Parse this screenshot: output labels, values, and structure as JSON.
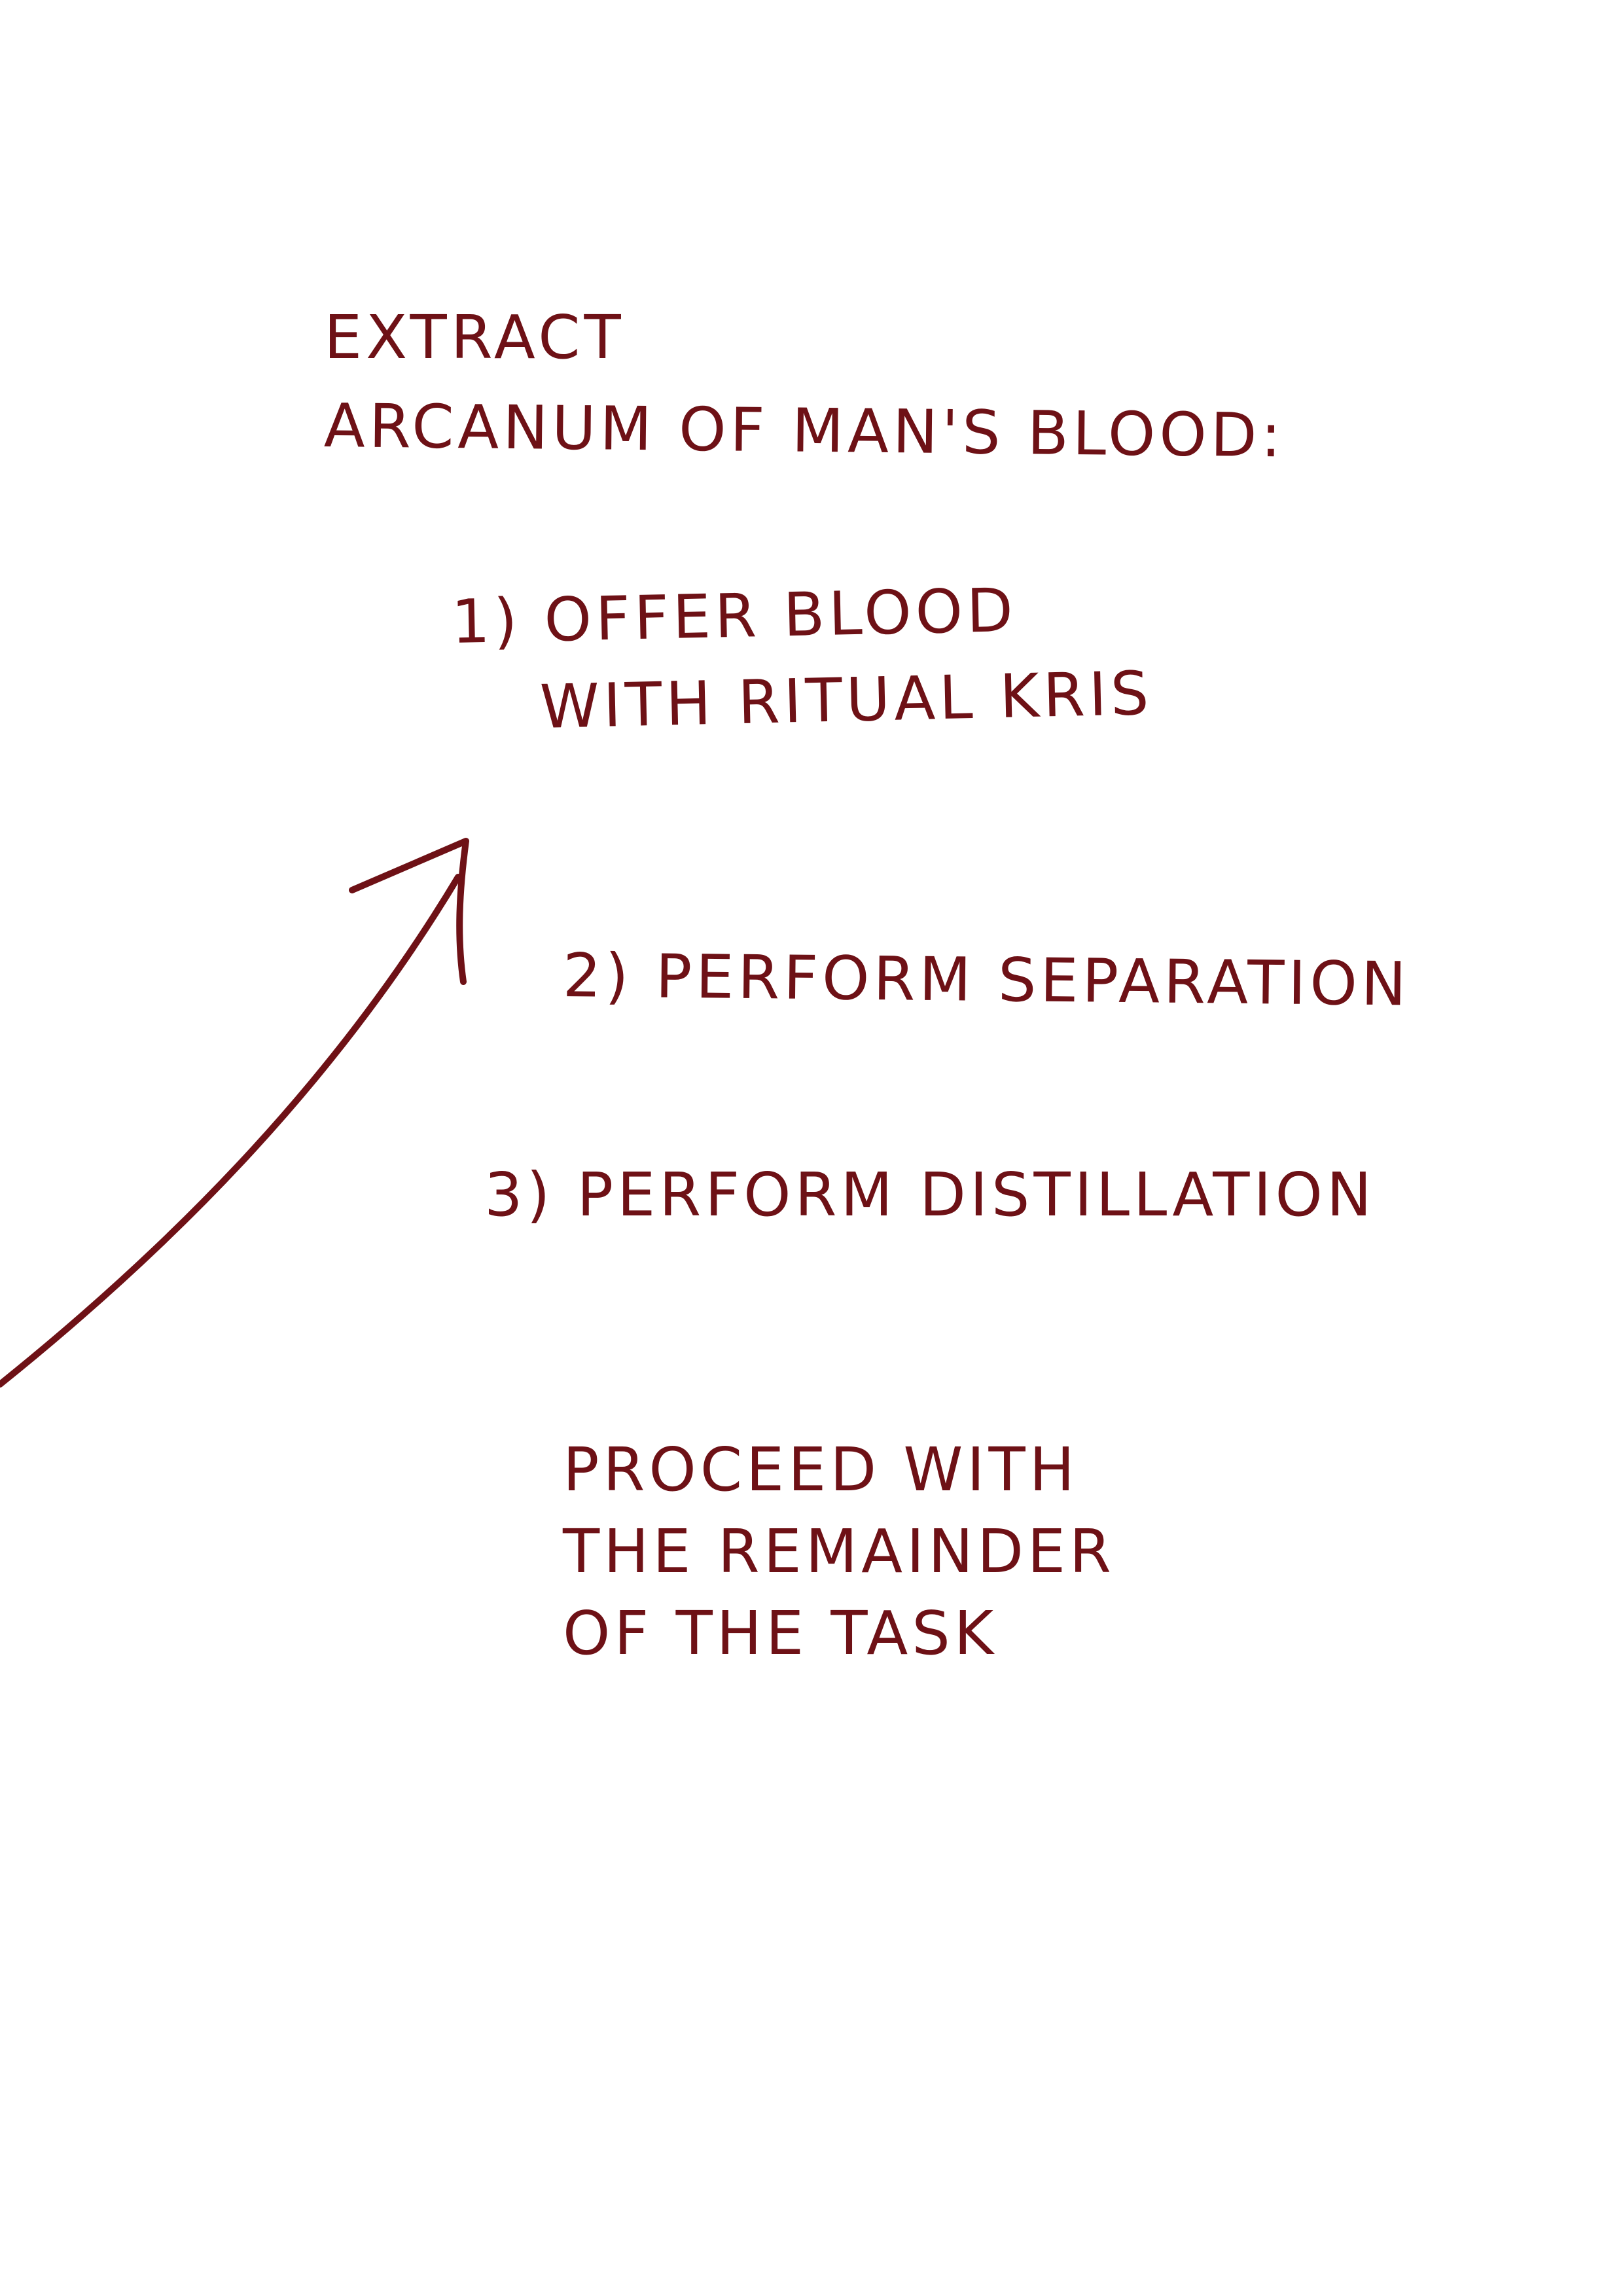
{
  "note": {
    "heading_line1": "EXTRACT",
    "heading_line2": "ARCANUM OF MAN'S BLOOD:",
    "step1_line1": "1) OFFER BLOOD",
    "step1_line2": "WITH RITUAL KRIS",
    "step2": "2) PERFORM SEPARATION",
    "step3": "3) PERFORM DISTILLATION",
    "proceed_line1": "PROCEED WITH",
    "proceed_line2": "THE REMAINDER",
    "proceed_line3": "OF THE TASK"
  },
  "colors": {
    "ink": "#6e1116",
    "paper": "#ffffff"
  },
  "icons": {
    "arrow": "curved-arrow-up-right-icon"
  }
}
